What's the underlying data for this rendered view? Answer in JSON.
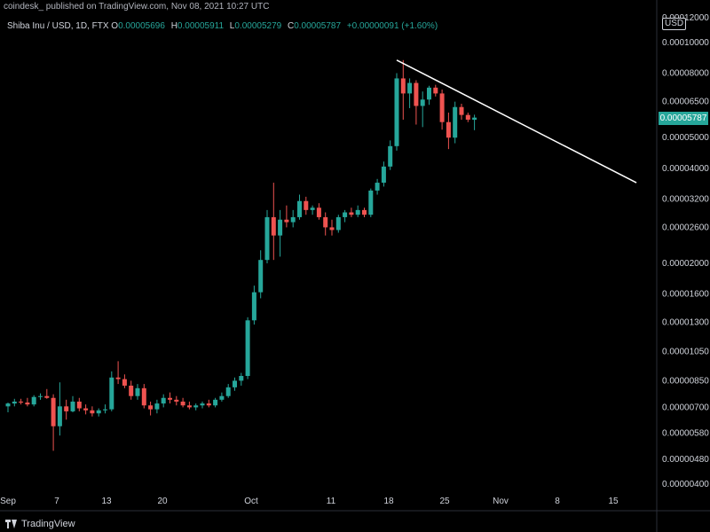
{
  "header": {
    "published_text": "coindesk_ published on TradingView.com, Nov 08, 2021 10:27 UTC"
  },
  "legend": {
    "symbol": "Shiba Inu / USD, 1D, FTX",
    "open_label": "O",
    "open": "0.00005696",
    "high_label": "H",
    "high": "0.00005911",
    "low_label": "L",
    "low": "0.00005279",
    "close_label": "C",
    "close": "0.00005787",
    "change": "+0.00000091 (+1.60%)"
  },
  "price_axis": {
    "currency": "USD",
    "last_price": "0.00005787",
    "ticks": [
      "0.00012000",
      "0.00010000",
      "0.00008000",
      "0.00006500",
      "0.00005000",
      "0.00004000",
      "0.00003200",
      "0.00002600",
      "0.00002000",
      "0.00001600",
      "0.00001300",
      "0.00001050",
      "0.00000850",
      "0.00000700",
      "0.00000580",
      "0.00000480",
      "0.00000400"
    ]
  },
  "footer": {
    "brand": "TradingView"
  },
  "colors": {
    "up": "#26a69a",
    "down": "#ef5350",
    "trendline": "#ffffff",
    "background": "#000000"
  },
  "chart_data": {
    "type": "candlestick",
    "scale": "log",
    "x_ticks": [
      "Sep",
      "7",
      "13",
      "20",
      "Oct",
      "11",
      "18",
      "25",
      "Nov",
      "8",
      "15"
    ],
    "ylim": [
      3.9e-06,
      0.000125
    ],
    "candles": [
      {
        "o": 7.05e-06,
        "h": 7.25e-06,
        "l": 6.75e-06,
        "c": 7.2e-06
      },
      {
        "o": 7.2e-06,
        "h": 7.45e-06,
        "l": 7.05e-06,
        "c": 7.3e-06
      },
      {
        "o": 7.3e-06,
        "h": 7.45e-06,
        "l": 7.15e-06,
        "c": 7.25e-06
      },
      {
        "o": 7.25e-06,
        "h": 7.5e-06,
        "l": 7.05e-06,
        "c": 7.15e-06
      },
      {
        "o": 7.15e-06,
        "h": 7.65e-06,
        "l": 7.05e-06,
        "c": 7.55e-06
      },
      {
        "o": 7.55e-06,
        "h": 7.75e-06,
        "l": 7.4e-06,
        "c": 7.6e-06
      },
      {
        "o": 7.6e-06,
        "h": 8e-06,
        "l": 7.45e-06,
        "c": 7.5e-06
      },
      {
        "o": 7.5e-06,
        "h": 7.7e-06,
        "l": 5.1e-06,
        "c": 6.1e-06
      },
      {
        "o": 6.1e-06,
        "h": 8.4e-06,
        "l": 5.7e-06,
        "c": 7.05e-06
      },
      {
        "o": 7.05e-06,
        "h": 7.4e-06,
        "l": 6.4e-06,
        "c": 6.8e-06
      },
      {
        "o": 6.8e-06,
        "h": 7.6e-06,
        "l": 6.75e-06,
        "c": 7.3e-06
      },
      {
        "o": 7.3e-06,
        "h": 7.5e-06,
        "l": 6.8e-06,
        "c": 6.95e-06
      },
      {
        "o": 6.95e-06,
        "h": 7.15e-06,
        "l": 6.65e-06,
        "c": 6.85e-06
      },
      {
        "o": 6.85e-06,
        "h": 7.05e-06,
        "l": 6.55e-06,
        "c": 6.7e-06
      },
      {
        "o": 6.7e-06,
        "h": 6.95e-06,
        "l": 6.55e-06,
        "c": 6.85e-06
      },
      {
        "o": 6.85e-06,
        "h": 7.15e-06,
        "l": 6.7e-06,
        "c": 6.9e-06
      },
      {
        "o": 6.9e-06,
        "h": 9.1e-06,
        "l": 6.8e-06,
        "c": 8.7e-06
      },
      {
        "o": 8.7e-06,
        "h": 9.8e-06,
        "l": 8.3e-06,
        "c": 8.6e-06
      },
      {
        "o": 8.6e-06,
        "h": 8.9e-06,
        "l": 8.05e-06,
        "c": 8.2e-06
      },
      {
        "o": 8.2e-06,
        "h": 8.5e-06,
        "l": 7.4e-06,
        "c": 7.6e-06
      },
      {
        "o": 7.6e-06,
        "h": 8.3e-06,
        "l": 7.4e-06,
        "c": 8.05e-06
      },
      {
        "o": 8.05e-06,
        "h": 8.3e-06,
        "l": 6.95e-06,
        "c": 7.1e-06
      },
      {
        "o": 7.1e-06,
        "h": 7.3e-06,
        "l": 6.6e-06,
        "c": 6.9e-06
      },
      {
        "o": 6.9e-06,
        "h": 7.4e-06,
        "l": 6.7e-06,
        "c": 7.2e-06
      },
      {
        "o": 7.2e-06,
        "h": 7.7e-06,
        "l": 7e-06,
        "c": 7.5e-06
      },
      {
        "o": 7.5e-06,
        "h": 7.8e-06,
        "l": 7.2e-06,
        "c": 7.4e-06
      },
      {
        "o": 7.4e-06,
        "h": 7.6e-06,
        "l": 7.1e-06,
        "c": 7.3e-06
      },
      {
        "o": 7.3e-06,
        "h": 7.5e-06,
        "l": 7e-06,
        "c": 7.1e-06
      },
      {
        "o": 7.1e-06,
        "h": 7.3e-06,
        "l": 6.9e-06,
        "c": 7e-06
      },
      {
        "o": 7e-06,
        "h": 7.2e-06,
        "l": 6.85e-06,
        "c": 7.1e-06
      },
      {
        "o": 7.1e-06,
        "h": 7.3e-06,
        "l": 6.95e-06,
        "c": 7.2e-06
      },
      {
        "o": 7.2e-06,
        "h": 7.4e-06,
        "l": 7e-06,
        "c": 7.1e-06
      },
      {
        "o": 7.1e-06,
        "h": 7.5e-06,
        "l": 7e-06,
        "c": 7.4e-06
      },
      {
        "o": 7.4e-06,
        "h": 7.8e-06,
        "l": 7.3e-06,
        "c": 7.6e-06
      },
      {
        "o": 7.6e-06,
        "h": 8.3e-06,
        "l": 7.5e-06,
        "c": 8.1e-06
      },
      {
        "o": 8.1e-06,
        "h": 8.7e-06,
        "l": 7.9e-06,
        "c": 8.5e-06
      },
      {
        "o": 8.5e-06,
        "h": 9e-06,
        "l": 8.2e-06,
        "c": 8.8e-06
      },
      {
        "o": 8.8e-06,
        "h": 1.35e-05,
        "l": 8.6e-06,
        "c": 1.32e-05
      },
      {
        "o": 1.32e-05,
        "h": 1.7e-05,
        "l": 1.28e-05,
        "c": 1.62e-05
      },
      {
        "o": 1.62e-05,
        "h": 2.2e-05,
        "l": 1.55e-05,
        "c": 2.05e-05
      },
      {
        "o": 2.05e-05,
        "h": 2.95e-05,
        "l": 2e-05,
        "c": 2.8e-05
      },
      {
        "o": 2.8e-05,
        "h": 3.6e-05,
        "l": 2.05e-05,
        "c": 2.45e-05
      },
      {
        "o": 2.45e-05,
        "h": 2.95e-05,
        "l": 2.1e-05,
        "c": 2.75e-05
      },
      {
        "o": 2.75e-05,
        "h": 3.05e-05,
        "l": 2.6e-05,
        "c": 2.7e-05
      },
      {
        "o": 2.7e-05,
        "h": 2.95e-05,
        "l": 2.6e-05,
        "c": 2.8e-05
      },
      {
        "o": 2.8e-05,
        "h": 3.3e-05,
        "l": 2.75e-05,
        "c": 3.15e-05
      },
      {
        "o": 3.15e-05,
        "h": 3.25e-05,
        "l": 2.85e-05,
        "c": 2.95e-05
      },
      {
        "o": 2.95e-05,
        "h": 3.05e-05,
        "l": 2.85e-05,
        "c": 3e-05
      },
      {
        "o": 3e-05,
        "h": 3.1e-05,
        "l": 2.75e-05,
        "c": 2.8e-05
      },
      {
        "o": 2.8e-05,
        "h": 2.9e-05,
        "l": 2.45e-05,
        "c": 2.6e-05
      },
      {
        "o": 2.6e-05,
        "h": 2.75e-05,
        "l": 2.45e-05,
        "c": 2.55e-05
      },
      {
        "o": 2.55e-05,
        "h": 2.85e-05,
        "l": 2.5e-05,
        "c": 2.8e-05
      },
      {
        "o": 2.8e-05,
        "h": 2.95e-05,
        "l": 2.7e-05,
        "c": 2.9e-05
      },
      {
        "o": 2.9e-05,
        "h": 3e-05,
        "l": 2.8e-05,
        "c": 2.85e-05
      },
      {
        "o": 2.85e-05,
        "h": 3.05e-05,
        "l": 2.8e-05,
        "c": 2.95e-05
      },
      {
        "o": 2.95e-05,
        "h": 3e-05,
        "l": 2.8e-05,
        "c": 2.85e-05
      },
      {
        "o": 2.85e-05,
        "h": 3.45e-05,
        "l": 2.8e-05,
        "c": 3.4e-05
      },
      {
        "o": 3.4e-05,
        "h": 3.7e-05,
        "l": 3.3e-05,
        "c": 3.6e-05
      },
      {
        "o": 3.6e-05,
        "h": 4.2e-05,
        "l": 3.5e-05,
        "c": 4.05e-05
      },
      {
        "o": 4.05e-05,
        "h": 4.9e-05,
        "l": 3.95e-05,
        "c": 4.7e-05
      },
      {
        "o": 4.7e-05,
        "h": 8e-05,
        "l": 4.55e-05,
        "c": 7.7e-05
      },
      {
        "o": 7.7e-05,
        "h": 8.8e-05,
        "l": 5.7e-05,
        "c": 6.9e-05
      },
      {
        "o": 6.9e-05,
        "h": 7.7e-05,
        "l": 6.2e-05,
        "c": 7.45e-05
      },
      {
        "o": 7.45e-05,
        "h": 7.6e-05,
        "l": 5.5e-05,
        "c": 6.3e-05
      },
      {
        "o": 6.3e-05,
        "h": 7e-05,
        "l": 5.4e-05,
        "c": 6.6e-05
      },
      {
        "o": 6.6e-05,
        "h": 7.3e-05,
        "l": 6.35e-05,
        "c": 7.2e-05
      },
      {
        "o": 7.2e-05,
        "h": 7.35e-05,
        "l": 6.75e-05,
        "c": 6.9e-05
      },
      {
        "o": 6.9e-05,
        "h": 7.1e-05,
        "l": 5.3e-05,
        "c": 5.6e-05
      },
      {
        "o": 5.6e-05,
        "h": 6e-05,
        "l": 4.6e-05,
        "c": 5e-05
      },
      {
        "o": 5e-05,
        "h": 6.5e-05,
        "l": 4.8e-05,
        "c": 6.25e-05
      },
      {
        "o": 6.25e-05,
        "h": 6.4e-05,
        "l": 5.7e-05,
        "c": 5.9e-05
      },
      {
        "o": 5.9e-05,
        "h": 6e-05,
        "l": 5.6e-05,
        "c": 5.7e-05
      },
      {
        "o": 5.696e-05,
        "h": 5.911e-05,
        "l": 5.279e-05,
        "c": 5.787e-05
      }
    ],
    "trendline": {
      "start_index": 60,
      "start_price": 8.8e-05,
      "end_index": 97,
      "end_price": 3.6e-05
    }
  }
}
